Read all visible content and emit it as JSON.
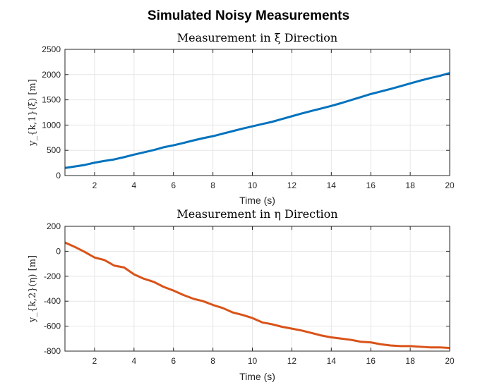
{
  "figure_title": "Simulated Noisy Measurements",
  "chart_data": [
    {
      "type": "line",
      "title": "Measurement in ξ Direction",
      "xlabel": "Time (s)",
      "ylabel": "y_{k,1}(ξ) [m]",
      "xlim": [
        0.5,
        20
      ],
      "ylim": [
        0,
        2500
      ],
      "xticks": [
        2,
        4,
        6,
        8,
        10,
        12,
        14,
        16,
        18,
        20
      ],
      "yticks": [
        0,
        500,
        1000,
        1500,
        2000,
        2500
      ],
      "grid": true,
      "series": [
        {
          "color": "#0072bd",
          "x": [
            0.5,
            1.0,
            1.5,
            2.0,
            2.5,
            3.0,
            3.5,
            4.0,
            4.5,
            5.0,
            5.5,
            6.0,
            6.5,
            7.0,
            7.5,
            8.0,
            8.5,
            9.0,
            9.5,
            10.0,
            10.5,
            11.0,
            11.5,
            12.0,
            12.5,
            13.0,
            13.5,
            14.0,
            14.5,
            15.0,
            15.5,
            16.0,
            16.5,
            17.0,
            17.5,
            18.0,
            18.5,
            19.0,
            19.5,
            20.0
          ],
          "values": [
            150,
            180,
            210,
            255,
            290,
            320,
            365,
            415,
            460,
            505,
            560,
            600,
            645,
            695,
            740,
            780,
            830,
            880,
            930,
            975,
            1020,
            1065,
            1120,
            1175,
            1230,
            1280,
            1330,
            1380,
            1435,
            1495,
            1555,
            1615,
            1665,
            1715,
            1770,
            1825,
            1880,
            1930,
            1975,
            2030
          ]
        }
      ]
    },
    {
      "type": "line",
      "title": "Measurement in η Direction",
      "xlabel": "Time (s)",
      "ylabel": "y_{k,2}(η) [m]",
      "xlim": [
        0.5,
        20
      ],
      "ylim": [
        -800,
        200
      ],
      "xticks": [
        2,
        4,
        6,
        8,
        10,
        12,
        14,
        16,
        18,
        20
      ],
      "yticks": [
        -800,
        -600,
        -400,
        -200,
        0,
        200
      ],
      "grid": true,
      "series": [
        {
          "color": "#d95319",
          "x": [
            0.5,
            1.0,
            1.5,
            2.0,
            2.5,
            3.0,
            3.5,
            4.0,
            4.5,
            5.0,
            5.5,
            6.0,
            6.5,
            7.0,
            7.5,
            8.0,
            8.5,
            9.0,
            9.5,
            10.0,
            10.5,
            11.0,
            11.5,
            12.0,
            12.5,
            13.0,
            13.5,
            14.0,
            14.5,
            15.0,
            15.5,
            16.0,
            16.5,
            17.0,
            17.5,
            18.0,
            18.5,
            19.0,
            19.5,
            20.0
          ],
          "values": [
            70,
            35,
            -5,
            -50,
            -70,
            -115,
            -130,
            -185,
            -220,
            -245,
            -285,
            -315,
            -350,
            -380,
            -400,
            -430,
            -455,
            -490,
            -510,
            -535,
            -570,
            -585,
            -605,
            -620,
            -635,
            -655,
            -675,
            -690,
            -700,
            -710,
            -725,
            -730,
            -745,
            -755,
            -760,
            -760,
            -765,
            -770,
            -770,
            -775
          ]
        }
      ]
    }
  ]
}
